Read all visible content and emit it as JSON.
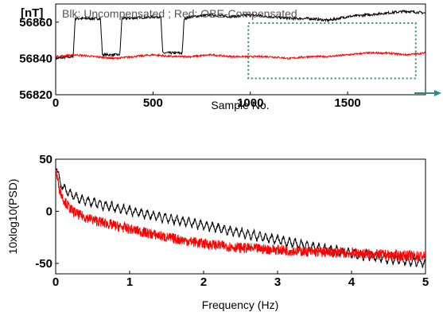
{
  "chart_data": [
    {
      "type": "line",
      "unit_label": "[nT]",
      "annotation": "Blk: Uncompensated ; Red: OBE-Compensated",
      "xlabel": "Sample No.",
      "ylabel": "",
      "xlim": [
        0,
        1900
      ],
      "ylim": [
        56820,
        56870
      ],
      "xticks": [
        0,
        500,
        1000,
        1500
      ],
      "yticks": [
        56820,
        56840,
        56860
      ],
      "grid": false,
      "series": [
        {
          "name": "Uncompensated",
          "color": "#000000",
          "x": [
            0,
            90,
            100,
            110,
            230,
            240,
            330,
            340,
            540,
            550,
            560,
            650,
            660,
            700,
            800,
            900,
            1000,
            1100,
            1200,
            1300,
            1400,
            1500,
            1600,
            1700,
            1800,
            1900
          ],
          "y": [
            56840,
            56841,
            56862,
            56862,
            56862,
            56842,
            56842,
            56862,
            56863,
            56843,
            56843,
            56843,
            56862,
            56863,
            56864,
            56863,
            56864,
            56863,
            56862,
            56862,
            56861,
            56863,
            56864,
            56865,
            56866,
            56865
          ]
        },
        {
          "name": "OBE-Compensated",
          "color": "#ff0000",
          "x": [
            0,
            100,
            200,
            300,
            400,
            500,
            600,
            700,
            800,
            900,
            1000,
            1100,
            1200,
            1300,
            1400,
            1500,
            1600,
            1700,
            1800,
            1900
          ],
          "y": [
            56841,
            56842,
            56841,
            56840,
            56841,
            56842,
            56841,
            56841,
            56842,
            56841,
            56841,
            56841,
            56840,
            56841,
            56841,
            56842,
            56843,
            56843,
            56842,
            56843
          ]
        }
      ],
      "highlight_box": {
        "x_range": [
          990,
          1850
        ],
        "y_range": [
          56829,
          56870
        ],
        "color": "#2e8b8b"
      }
    },
    {
      "type": "line",
      "xlabel": "Frequency (Hz)",
      "ylabel": "10xlog10(PSD)",
      "xlim": [
        0,
        5
      ],
      "ylim": [
        -60,
        50
      ],
      "xticks": [
        0,
        1,
        2,
        3,
        4,
        5
      ],
      "yticks": [
        -50,
        0,
        50
      ],
      "grid": false,
      "series": [
        {
          "name": "Uncompensated",
          "color": "#000000",
          "x": [
            0,
            0.05,
            0.1,
            0.2,
            0.3,
            0.5,
            0.75,
            1,
            1.5,
            2,
            2.5,
            3,
            3.5,
            4,
            4.5,
            5
          ],
          "y": [
            45,
            30,
            22,
            16,
            12,
            8,
            4,
            0,
            -7,
            -14,
            -21,
            -28,
            -35,
            -41,
            -46,
            -50
          ]
        },
        {
          "name": "OBE-Compensated",
          "color": "#ff0000",
          "x": [
            0,
            0.05,
            0.1,
            0.2,
            0.3,
            0.5,
            0.75,
            1,
            1.5,
            2,
            2.5,
            3,
            3.5,
            4,
            4.5,
            5
          ],
          "y": [
            40,
            22,
            12,
            2,
            -3,
            -8,
            -13,
            -17,
            -25,
            -31,
            -35,
            -37,
            -39,
            -40,
            -42,
            -43
          ]
        }
      ]
    }
  ]
}
